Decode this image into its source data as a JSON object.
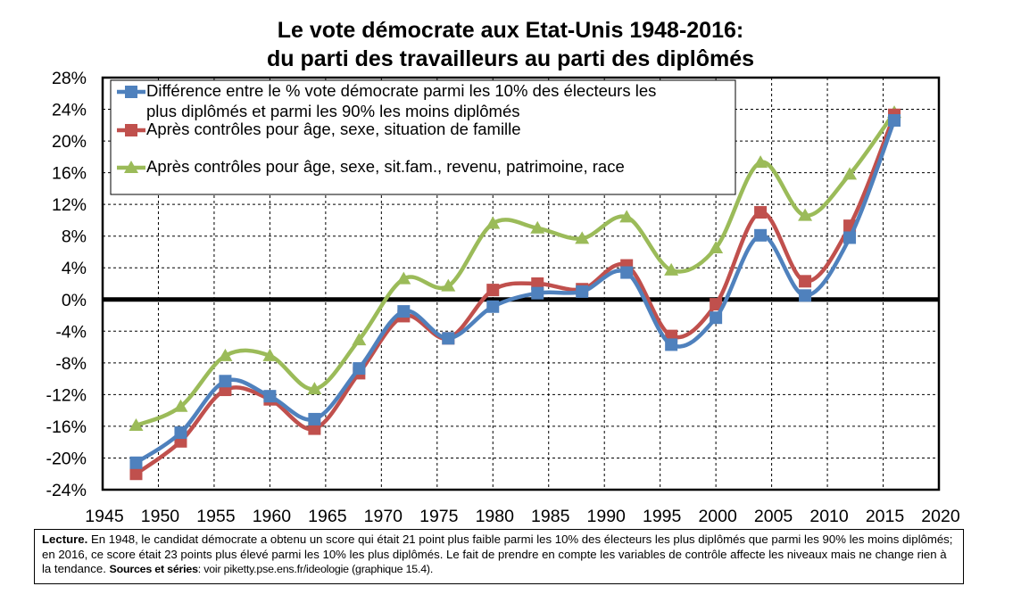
{
  "chart_data": {
    "type": "line",
    "title": "Le vote démocrate aux Etat-Unis 1948-2016:",
    "subtitle": "du parti des travailleurs au parti des diplômés",
    "xlim": [
      1945,
      2020
    ],
    "ylim": [
      -24,
      28
    ],
    "x_ticks": [
      1945,
      1950,
      1955,
      1960,
      1965,
      1970,
      1975,
      1980,
      1985,
      1990,
      1995,
      2000,
      2005,
      2010,
      2015,
      2020
    ],
    "x_tick_labels": [
      "1945",
      "1950",
      "1955",
      "1960",
      "1965",
      "1970",
      "1975",
      "1980",
      "1985",
      "1990",
      "1995",
      "2000",
      "2005",
      "2010",
      "2015",
      "2020"
    ],
    "y_ticks": [
      -24,
      -20,
      -16,
      -12,
      -8,
      -4,
      0,
      4,
      8,
      12,
      16,
      20,
      24,
      28
    ],
    "y_tick_labels": [
      "-24%",
      "-20%",
      "-16%",
      "-12%",
      "-8%",
      "-4%",
      "0%",
      "4%",
      "8%",
      "12%",
      "16%",
      "20%",
      "24%",
      "28%"
    ],
    "grid": true,
    "legend_position": "top-left",
    "x": [
      1948,
      1952,
      1956,
      1960,
      1964,
      1968,
      1972,
      1976,
      1980,
      1984,
      1988,
      1992,
      1996,
      2000,
      2004,
      2008,
      2012,
      2016
    ],
    "series": [
      {
        "name_lines": [
          "Différence entre le % vote démocrate parmi les 10% des électeurs les",
          "plus diplômés et parmi les 90% les moins diplômés"
        ],
        "color": "#4f81bd",
        "marker": "square",
        "values": [
          -20.6,
          -16.8,
          -10.3,
          -12.2,
          -15.1,
          -8.7,
          -1.5,
          -4.9,
          -0.9,
          0.8,
          1.0,
          3.4,
          -5.7,
          -2.3,
          8.1,
          0.5,
          7.8,
          22.6
        ]
      },
      {
        "name_lines": [
          "Après contrôles pour âge, sexe, situation de famille"
        ],
        "color": "#c0504d",
        "marker": "square",
        "values": [
          -22.0,
          -17.9,
          -11.4,
          -12.6,
          -16.3,
          -9.3,
          -2.1,
          -4.9,
          1.2,
          2.0,
          1.3,
          4.3,
          -4.6,
          -0.6,
          11.0,
          2.3,
          9.3,
          23.3
        ]
      },
      {
        "name_lines": [
          "Après contrôles pour âge, sexe, sit.fam., revenu, patrimoine, race"
        ],
        "color": "#9bbb59",
        "marker": "triangle",
        "values": [
          -15.9,
          -13.5,
          -7.1,
          -7.1,
          -11.3,
          -5.1,
          2.6,
          1.7,
          9.6,
          9.0,
          7.7,
          10.4,
          3.7,
          6.5,
          17.3,
          10.6,
          15.8,
          23.6
        ]
      }
    ]
  },
  "note": {
    "label": "Lecture.",
    "text": " En 1948, le candidat démocrate a obtenu un score qui était 21 point plus faible parmi les 10% des électeurs les plus diplômés que parmi les 90% les moins diplômés; en 2016, ce score était 23 points plus élevé parmi les 10% les plus diplômés. Le fait de prendre en compte les variables de contrôle affecte les niveaux mais ne change rien à la tendance. ",
    "sources_label": "Sources et séries",
    "sources_text": ": voir piketty.pse.ens.fr/ideologie (graphique 15.4)."
  }
}
